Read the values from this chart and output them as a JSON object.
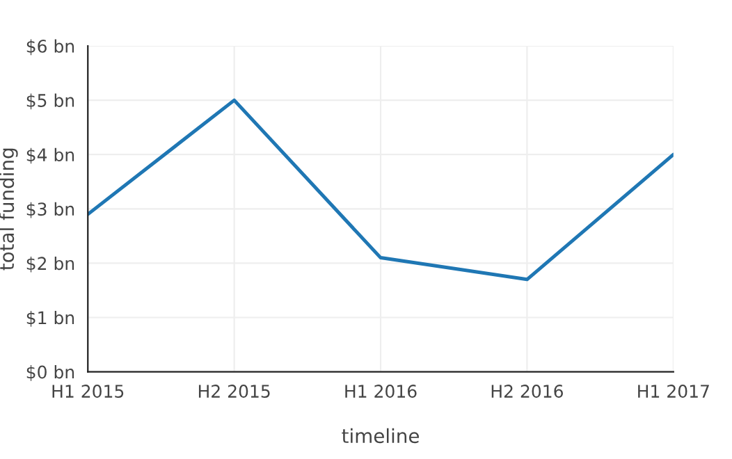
{
  "chart_data": {
    "type": "line",
    "xlabel": "timeline",
    "ylabel": "total funding",
    "categories": [
      "H1 2015",
      "H2 2015",
      "H1 2016",
      "H2 2016",
      "H1 2017"
    ],
    "series": [
      {
        "color": "#1f77b4",
        "values": [
          2.9,
          5.0,
          2.1,
          1.7,
          4.0
        ]
      }
    ],
    "ylim": [
      0,
      6
    ],
    "yticks": [
      {
        "value": 0,
        "label": "$0 bn"
      },
      {
        "value": 1,
        "label": "$1 bn"
      },
      {
        "value": 2,
        "label": "$2 bn"
      },
      {
        "value": 3,
        "label": "$3 bn"
      },
      {
        "value": 4,
        "label": "$4 bn"
      },
      {
        "value": 5,
        "label": "$5 bn"
      },
      {
        "value": 6,
        "label": "$6 bn"
      }
    ],
    "grid": true,
    "legend": false
  }
}
